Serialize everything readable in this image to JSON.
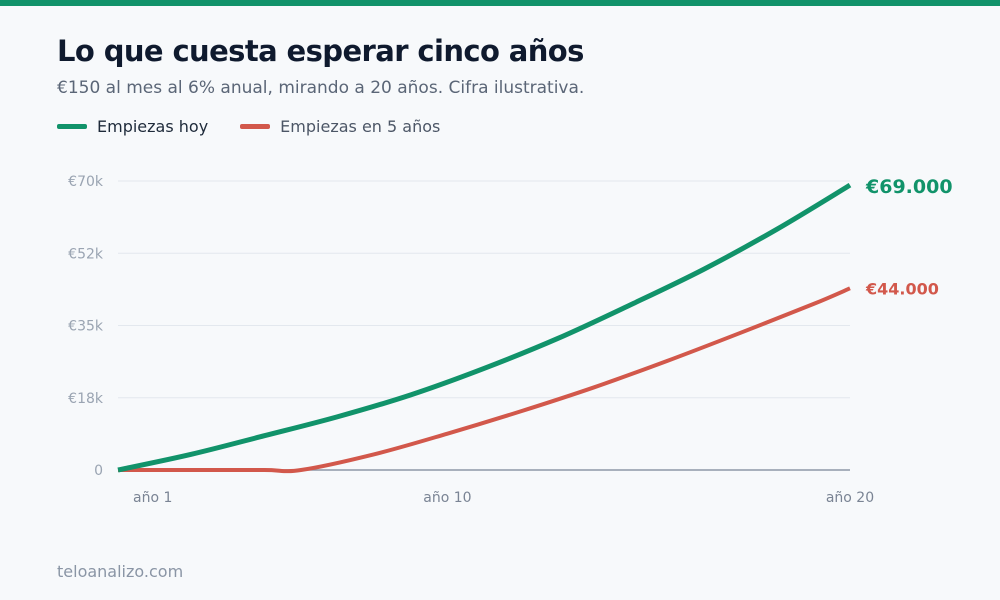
{
  "header": {
    "title": "Lo que cuesta esperar cinco años",
    "subtitle": "€150 al mes al 6% anual, mirando a 20 años. Cifra ilustrativa."
  },
  "footer": {
    "source": "teloanalizo.com"
  },
  "colors": {
    "accent_bar": "#11936a",
    "green": "#11936a",
    "red": "#d2584b"
  },
  "chart_data": {
    "type": "line",
    "title": "Lo que cuesta esperar cinco años",
    "subtitle": "€150 al mes al 6% anual, mirando a 20 años. Cifra ilustrativa.",
    "xlabel": "",
    "ylabel": "",
    "xlim": [
      0,
      20
    ],
    "ylim": [
      0,
      70000
    ],
    "x_ticks": [
      {
        "value": 0,
        "label": "año 1"
      },
      {
        "value": 9,
        "label": "año 10"
      },
      {
        "value": 20,
        "label": "año 20"
      }
    ],
    "y_ticks": [
      {
        "value": 0,
        "label": "0"
      },
      {
        "value": 17500,
        "label": "€18k"
      },
      {
        "value": 35000,
        "label": "€35k"
      },
      {
        "value": 52500,
        "label": "€52k"
      },
      {
        "value": 70000,
        "label": "€70k"
      }
    ],
    "grid": "horizontal",
    "legend_position": "top-left",
    "series": [
      {
        "name": "Empiezas hoy",
        "color": "#11936a",
        "end_label": "€69.000",
        "x": [
          0,
          2,
          4,
          6,
          8,
          10,
          12,
          14,
          16,
          18,
          20
        ],
        "y": [
          0,
          3800,
          8300,
          12900,
          18200,
          24600,
          31800,
          40000,
          48600,
          58300,
          69000
        ]
      },
      {
        "name": "Empiezas en 5 años",
        "color": "#d2584b",
        "end_label": "€44.000",
        "x": [
          0,
          2,
          4,
          5,
          7,
          9,
          11,
          13,
          15,
          17,
          19,
          20
        ],
        "y": [
          0,
          0,
          0,
          0,
          3800,
          8800,
          14200,
          20000,
          26400,
          33200,
          40200,
          44000
        ]
      }
    ]
  }
}
